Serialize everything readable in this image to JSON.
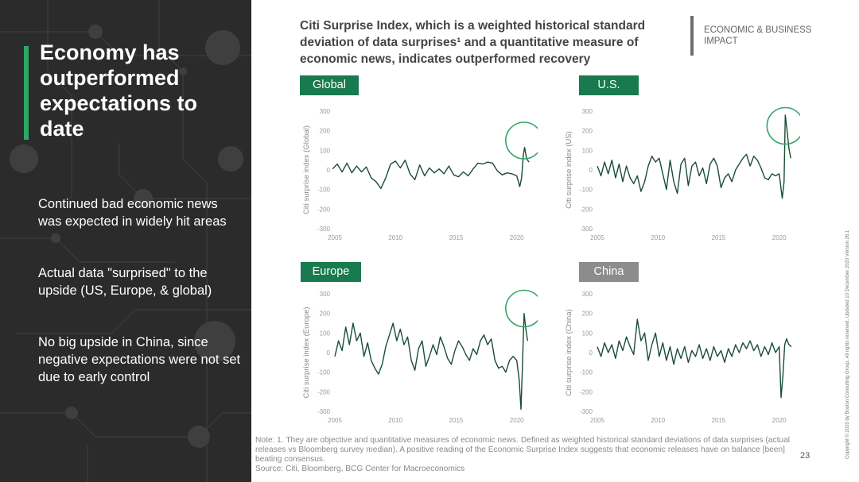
{
  "sidebar": {
    "headline": "Economy has outperformed expectations to date",
    "bullets": [
      "Continued bad economic news was expected in widely hit areas",
      "Actual data \"surprised\" to the upside (US,  Europe, & global)",
      "No big upside in China, since negative expectations were not set due to early control"
    ]
  },
  "header": {
    "title": "Citi Surprise Index, which is a weighted historical standard deviation of data surprises¹  and a quantitative measure of economic news, indicates outperformed recovery",
    "section": "ECONOMIC & BUSINESS IMPACT"
  },
  "colors": {
    "panel_dark": "#2b2b2b",
    "accent_green": "#2fa866",
    "label_green": "#197a4f",
    "label_gray": "#8c8c8c",
    "line_dark_green": "#1b4d36",
    "highlight_circle": "#3aa56e"
  },
  "chart_data": [
    {
      "type": "line",
      "label": "Global",
      "ylabel": "Citi surprise index (Global)",
      "xlim": [
        2005,
        2021.2
      ],
      "ylim": [
        -300,
        300
      ],
      "yticks": [
        300,
        200,
        100,
        0,
        -100,
        -200,
        -300
      ],
      "xticks": [
        2005,
        2010,
        2015,
        2020
      ],
      "highlight": {
        "x": 2020.6,
        "y": 150
      },
      "points": [
        [
          2004.8,
          5
        ],
        [
          2005.2,
          30
        ],
        [
          2005.6,
          -10
        ],
        [
          2006.0,
          35
        ],
        [
          2006.4,
          -15
        ],
        [
          2006.8,
          20
        ],
        [
          2007.2,
          -10
        ],
        [
          2007.6,
          15
        ],
        [
          2008.0,
          -40
        ],
        [
          2008.4,
          -60
        ],
        [
          2008.8,
          -95
        ],
        [
          2009.2,
          -40
        ],
        [
          2009.6,
          30
        ],
        [
          2010.0,
          45
        ],
        [
          2010.4,
          10
        ],
        [
          2010.8,
          50
        ],
        [
          2011.2,
          -20
        ],
        [
          2011.6,
          -50
        ],
        [
          2012.0,
          25
        ],
        [
          2012.4,
          -30
        ],
        [
          2012.8,
          10
        ],
        [
          2013.2,
          -15
        ],
        [
          2013.6,
          5
        ],
        [
          2014.0,
          -20
        ],
        [
          2014.4,
          20
        ],
        [
          2014.8,
          -25
        ],
        [
          2015.2,
          -35
        ],
        [
          2015.6,
          -10
        ],
        [
          2016.0,
          -30
        ],
        [
          2016.4,
          5
        ],
        [
          2016.8,
          35
        ],
        [
          2017.2,
          30
        ],
        [
          2017.6,
          40
        ],
        [
          2018.0,
          35
        ],
        [
          2018.4,
          -5
        ],
        [
          2018.8,
          -25
        ],
        [
          2019.2,
          -15
        ],
        [
          2019.6,
          -20
        ],
        [
          2020.0,
          -30
        ],
        [
          2020.25,
          -85
        ],
        [
          2020.4,
          -40
        ],
        [
          2020.55,
          80
        ],
        [
          2020.65,
          115
        ],
        [
          2020.8,
          60
        ],
        [
          2021.0,
          40
        ]
      ]
    },
    {
      "type": "line",
      "label": "U.S.",
      "ylabel": "Citi surprise index (US)",
      "xlim": [
        2005,
        2021.2
      ],
      "ylim": [
        -300,
        300
      ],
      "yticks": [
        300,
        200,
        100,
        0,
        -100,
        -200,
        -300
      ],
      "xticks": [
        2005,
        2010,
        2015,
        2020
      ],
      "highlight": {
        "x": 2020.5,
        "y": 225
      },
      "points": [
        [
          2005.0,
          20
        ],
        [
          2005.3,
          -30
        ],
        [
          2005.6,
          40
        ],
        [
          2005.9,
          -20
        ],
        [
          2006.2,
          50
        ],
        [
          2006.5,
          -40
        ],
        [
          2006.8,
          30
        ],
        [
          2007.1,
          -60
        ],
        [
          2007.4,
          20
        ],
        [
          2007.7,
          -40
        ],
        [
          2008.0,
          -70
        ],
        [
          2008.3,
          -30
        ],
        [
          2008.6,
          -110
        ],
        [
          2008.9,
          -60
        ],
        [
          2009.2,
          20
        ],
        [
          2009.5,
          70
        ],
        [
          2009.8,
          40
        ],
        [
          2010.1,
          60
        ],
        [
          2010.4,
          -20
        ],
        [
          2010.7,
          -100
        ],
        [
          2011.0,
          50
        ],
        [
          2011.3,
          -60
        ],
        [
          2011.6,
          -120
        ],
        [
          2011.9,
          30
        ],
        [
          2012.2,
          60
        ],
        [
          2012.5,
          -80
        ],
        [
          2012.8,
          20
        ],
        [
          2013.1,
          40
        ],
        [
          2013.4,
          -30
        ],
        [
          2013.7,
          10
        ],
        [
          2014.0,
          -70
        ],
        [
          2014.3,
          30
        ],
        [
          2014.6,
          60
        ],
        [
          2014.9,
          20
        ],
        [
          2015.2,
          -90
        ],
        [
          2015.5,
          -40
        ],
        [
          2015.8,
          -20
        ],
        [
          2016.1,
          -60
        ],
        [
          2016.4,
          0
        ],
        [
          2016.7,
          30
        ],
        [
          2017.0,
          60
        ],
        [
          2017.3,
          80
        ],
        [
          2017.6,
          20
        ],
        [
          2017.9,
          70
        ],
        [
          2018.2,
          50
        ],
        [
          2018.5,
          10
        ],
        [
          2018.8,
          -40
        ],
        [
          2019.1,
          -50
        ],
        [
          2019.4,
          -20
        ],
        [
          2019.7,
          -30
        ],
        [
          2020.0,
          -20
        ],
        [
          2020.25,
          -145
        ],
        [
          2020.4,
          -60
        ],
        [
          2020.5,
          280
        ],
        [
          2020.65,
          200
        ],
        [
          2020.8,
          110
        ],
        [
          2020.95,
          60
        ]
      ]
    },
    {
      "type": "line",
      "label": "Europe",
      "ylabel": "Citi surprise index (Europe)",
      "xlim": [
        2005,
        2021.2
      ],
      "ylim": [
        -300,
        300
      ],
      "yticks": [
        300,
        200,
        100,
        0,
        -100,
        -200,
        -300
      ],
      "xticks": [
        2005,
        2010,
        2015,
        2020
      ],
      "highlight": {
        "x": 2020.6,
        "y": 225
      },
      "points": [
        [
          2005.0,
          -20
        ],
        [
          2005.3,
          60
        ],
        [
          2005.6,
          10
        ],
        [
          2005.9,
          130
        ],
        [
          2006.2,
          40
        ],
        [
          2006.5,
          150
        ],
        [
          2006.8,
          60
        ],
        [
          2007.1,
          100
        ],
        [
          2007.4,
          -20
        ],
        [
          2007.7,
          50
        ],
        [
          2008.0,
          -40
        ],
        [
          2008.3,
          -80
        ],
        [
          2008.6,
          -110
        ],
        [
          2008.9,
          -60
        ],
        [
          2009.2,
          30
        ],
        [
          2009.5,
          90
        ],
        [
          2009.8,
          150
        ],
        [
          2010.1,
          60
        ],
        [
          2010.4,
          120
        ],
        [
          2010.7,
          40
        ],
        [
          2011.0,
          80
        ],
        [
          2011.3,
          -40
        ],
        [
          2011.6,
          -90
        ],
        [
          2011.9,
          20
        ],
        [
          2012.2,
          60
        ],
        [
          2012.5,
          -70
        ],
        [
          2012.8,
          -20
        ],
        [
          2013.1,
          40
        ],
        [
          2013.4,
          -10
        ],
        [
          2013.7,
          80
        ],
        [
          2014.0,
          30
        ],
        [
          2014.3,
          -30
        ],
        [
          2014.6,
          -60
        ],
        [
          2014.9,
          10
        ],
        [
          2015.2,
          60
        ],
        [
          2015.5,
          30
        ],
        [
          2015.8,
          -10
        ],
        [
          2016.1,
          -40
        ],
        [
          2016.4,
          20
        ],
        [
          2016.7,
          -10
        ],
        [
          2017.0,
          60
        ],
        [
          2017.3,
          90
        ],
        [
          2017.6,
          40
        ],
        [
          2017.9,
          70
        ],
        [
          2018.2,
          -40
        ],
        [
          2018.5,
          -80
        ],
        [
          2018.8,
          -70
        ],
        [
          2019.1,
          -100
        ],
        [
          2019.4,
          -40
        ],
        [
          2019.7,
          -20
        ],
        [
          2020.0,
          -40
        ],
        [
          2020.2,
          -140
        ],
        [
          2020.35,
          -290
        ],
        [
          2020.45,
          -100
        ],
        [
          2020.6,
          200
        ],
        [
          2020.75,
          120
        ],
        [
          2020.9,
          60
        ]
      ]
    },
    {
      "type": "line",
      "label": "China",
      "ylabel": "Citi surprise index (China)",
      "xlim": [
        2005,
        2021.2
      ],
      "ylim": [
        -300,
        300
      ],
      "yticks": [
        300,
        200,
        100,
        0,
        -100,
        -200,
        -300
      ],
      "xticks": [
        2005,
        2010,
        2015,
        2020
      ],
      "highlight": null,
      "points": [
        [
          2005.0,
          30
        ],
        [
          2005.3,
          -20
        ],
        [
          2005.6,
          50
        ],
        [
          2005.9,
          0
        ],
        [
          2006.2,
          40
        ],
        [
          2006.5,
          -30
        ],
        [
          2006.8,
          60
        ],
        [
          2007.1,
          10
        ],
        [
          2007.4,
          80
        ],
        [
          2007.7,
          30
        ],
        [
          2008.0,
          -10
        ],
        [
          2008.3,
          170
        ],
        [
          2008.6,
          60
        ],
        [
          2008.9,
          100
        ],
        [
          2009.2,
          -40
        ],
        [
          2009.5,
          40
        ],
        [
          2009.8,
          100
        ],
        [
          2010.1,
          -20
        ],
        [
          2010.4,
          50
        ],
        [
          2010.7,
          -40
        ],
        [
          2011.0,
          30
        ],
        [
          2011.3,
          -60
        ],
        [
          2011.6,
          20
        ],
        [
          2011.9,
          -30
        ],
        [
          2012.2,
          30
        ],
        [
          2012.5,
          -50
        ],
        [
          2012.8,
          10
        ],
        [
          2013.1,
          -20
        ],
        [
          2013.4,
          40
        ],
        [
          2013.7,
          -30
        ],
        [
          2014.0,
          20
        ],
        [
          2014.3,
          -40
        ],
        [
          2014.6,
          30
        ],
        [
          2014.9,
          -20
        ],
        [
          2015.2,
          10
        ],
        [
          2015.5,
          -50
        ],
        [
          2015.8,
          20
        ],
        [
          2016.1,
          -20
        ],
        [
          2016.4,
          40
        ],
        [
          2016.7,
          0
        ],
        [
          2017.0,
          50
        ],
        [
          2017.3,
          20
        ],
        [
          2017.6,
          60
        ],
        [
          2017.9,
          10
        ],
        [
          2018.2,
          40
        ],
        [
          2018.5,
          -20
        ],
        [
          2018.8,
          30
        ],
        [
          2019.1,
          -10
        ],
        [
          2019.4,
          50
        ],
        [
          2019.7,
          0
        ],
        [
          2020.0,
          30
        ],
        [
          2020.15,
          -230
        ],
        [
          2020.3,
          -120
        ],
        [
          2020.45,
          40
        ],
        [
          2020.6,
          70
        ],
        [
          2020.8,
          40
        ],
        [
          2021.0,
          30
        ]
      ]
    }
  ],
  "footnote": {
    "note": "Note: 1. They are objective and quantitative measures of economic news. Defined as weighted historical standard deviations of data surprises (actual releases vs Bloomberg survey median). A positive reading of the Economic Surprise Index suggests that economic releases have on balance [been] beating consensus.",
    "source": "Source: Citi, Bloomberg, BCG Center for Macroeconomics"
  },
  "page_number": "23",
  "copyright": "Copyright © 2020 by Boston Consulting Group. All rights reserved. Updated 10 December 2020 Version 26.1"
}
